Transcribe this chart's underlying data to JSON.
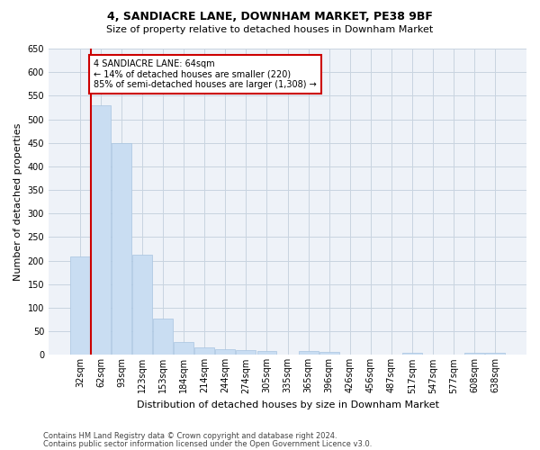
{
  "title1": "4, SANDIACRE LANE, DOWNHAM MARKET, PE38 9BF",
  "title2": "Size of property relative to detached houses in Downham Market",
  "xlabel": "Distribution of detached houses by size in Downham Market",
  "ylabel": "Number of detached properties",
  "footer1": "Contains HM Land Registry data © Crown copyright and database right 2024.",
  "footer2": "Contains public sector information licensed under the Open Government Licence v3.0.",
  "categories": [
    "32sqm",
    "62sqm",
    "93sqm",
    "123sqm",
    "153sqm",
    "184sqm",
    "214sqm",
    "244sqm",
    "274sqm",
    "305sqm",
    "335sqm",
    "365sqm",
    "396sqm",
    "426sqm",
    "456sqm",
    "487sqm",
    "517sqm",
    "547sqm",
    "577sqm",
    "608sqm",
    "638sqm"
  ],
  "values": [
    208,
    530,
    450,
    212,
    78,
    27,
    16,
    13,
    10,
    8,
    0,
    8,
    6,
    0,
    0,
    0,
    4,
    0,
    0,
    4,
    4
  ],
  "bar_color": "#c9ddf2",
  "bar_edge_color": "#a8c4e0",
  "grid_color": "#c8d4e0",
  "background_color": "#eef2f8",
  "annotation_text": "4 SANDIACRE LANE: 64sqm\n← 14% of detached houses are smaller (220)\n85% of semi-detached houses are larger (1,308) →",
  "annotation_box_color": "#ffffff",
  "annotation_box_edge": "#cc0000",
  "vline_color": "#cc0000",
  "vline_pos": 0.5,
  "ylim": [
    0,
    650
  ],
  "yticks": [
    0,
    50,
    100,
    150,
    200,
    250,
    300,
    350,
    400,
    450,
    500,
    550,
    600,
    650
  ],
  "title1_fontsize": 9,
  "title2_fontsize": 8,
  "xlabel_fontsize": 8,
  "ylabel_fontsize": 8,
  "tick_fontsize": 7,
  "footer_fontsize": 6
}
